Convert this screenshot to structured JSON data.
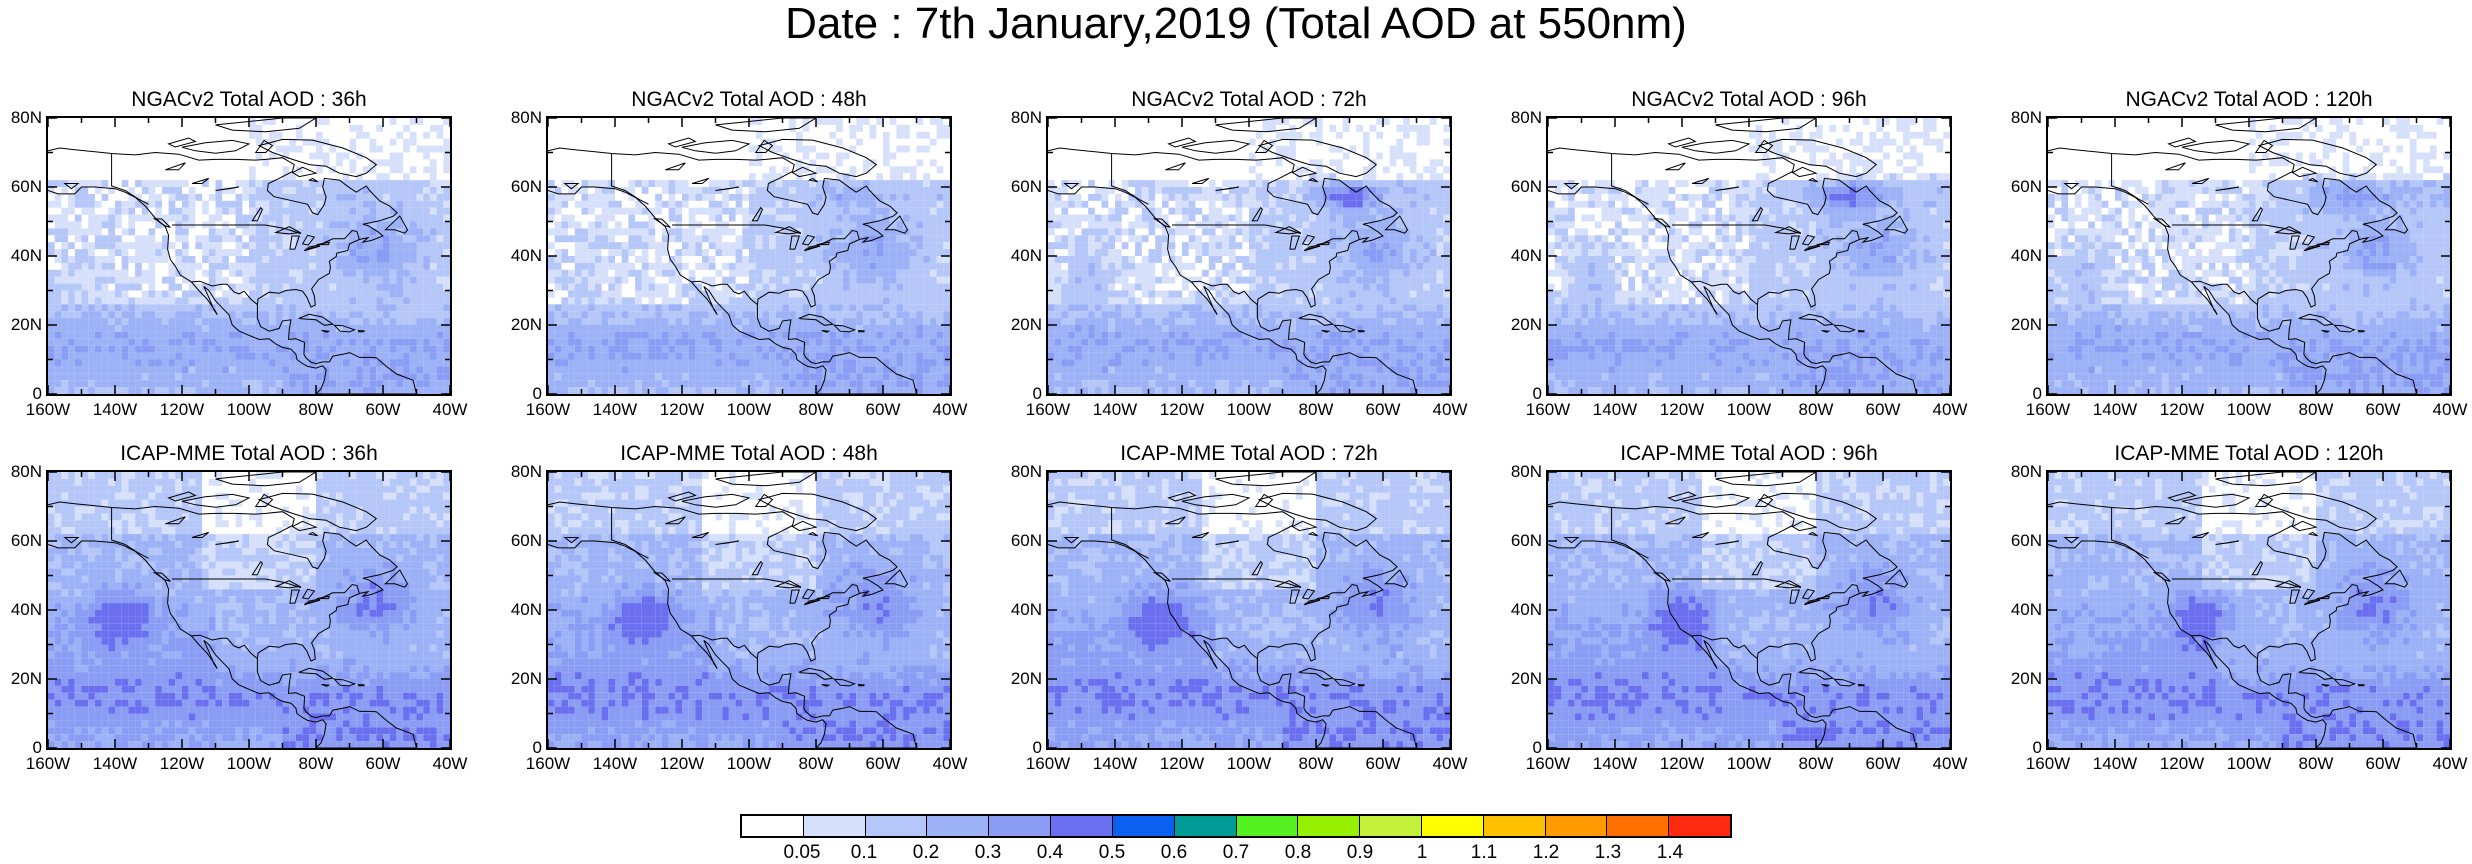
{
  "title": "Date : 7th January,2019 (Total AOD at 550nm)",
  "panels": [
    {
      "title": "NGACv2 Total AOD : 36h",
      "model": "NGACv2",
      "lead": "36h"
    },
    {
      "title": "NGACv2 Total AOD : 48h",
      "model": "NGACv2",
      "lead": "48h"
    },
    {
      "title": "NGACv2 Total AOD : 72h",
      "model": "NGACv2",
      "lead": "72h"
    },
    {
      "title": "NGACv2 Total AOD : 96h",
      "model": "NGACv2",
      "lead": "96h"
    },
    {
      "title": "NGACv2 Total AOD : 120h",
      "model": "NGACv2",
      "lead": "120h"
    },
    {
      "title": "ICAP-MME Total AOD : 36h",
      "model": "ICAP-MME",
      "lead": "36h"
    },
    {
      "title": "ICAP-MME Total AOD : 48h",
      "model": "ICAP-MME",
      "lead": "48h"
    },
    {
      "title": "ICAP-MME Total AOD : 72h",
      "model": "ICAP-MME",
      "lead": "72h"
    },
    {
      "title": "ICAP-MME Total AOD : 96h",
      "model": "ICAP-MME",
      "lead": "96h"
    },
    {
      "title": "ICAP-MME Total AOD : 120h",
      "model": "ICAP-MME",
      "lead": "120h"
    }
  ],
  "lat_ticks": [
    "80N",
    "60N",
    "40N",
    "20N",
    "0"
  ],
  "lon_ticks": [
    "160W",
    "140W",
    "120W",
    "100W",
    "80W",
    "60W",
    "40W"
  ],
  "extent": {
    "lon_min": -160,
    "lon_max": -40,
    "lat_min": 0,
    "lat_max": 80
  },
  "colorbar": {
    "labels": [
      "0.05",
      "0.1",
      "0.2",
      "0.3",
      "0.4",
      "0.5",
      "0.6",
      "0.7",
      "0.8",
      "0.9",
      "1",
      "1.1",
      "1.2",
      "1.3",
      "1.4"
    ],
    "colors": [
      "#ffffff",
      "#d6e0fb",
      "#b5c6f8",
      "#9cb1f6",
      "#8a9cf3",
      "#6a6ff0",
      "#0a60f0",
      "#009b96",
      "#54f020",
      "#96f000",
      "#c4f23a",
      "#fffd00",
      "#ffc000",
      "#ff9b00",
      "#ff7000",
      "#ff2a10"
    ]
  }
}
